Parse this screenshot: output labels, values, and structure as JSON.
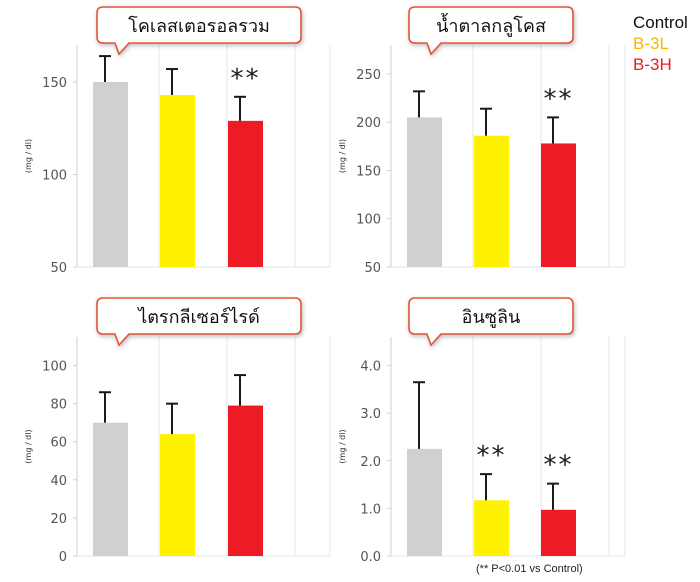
{
  "legend": [
    {
      "label": "Control",
      "color": "#111111"
    },
    {
      "label": "B-3L",
      "color": "#f5b800"
    },
    {
      "label": "B-3H",
      "color": "#e81c24"
    }
  ],
  "footnote": "(** P<0.01 vs Control)",
  "colors": {
    "control": "#cfd1d1",
    "b3l": "#fff200",
    "b3h": "#ed1c24",
    "callout_border": "#e2543a"
  },
  "chart_data": [
    {
      "type": "bar",
      "title": "โคเลสเตอรอลรวม",
      "ylabel": "(mg / dl)",
      "ylim": [
        50,
        170
      ],
      "yticks": [
        50,
        100,
        150
      ],
      "ytick_labels": [
        "50",
        "100",
        "150"
      ],
      "categories": [
        "Control",
        "B-3L",
        "B-3H"
      ],
      "values": [
        150,
        143,
        129
      ],
      "errors": [
        14,
        14,
        13
      ],
      "annotations": [
        "",
        "",
        "**"
      ]
    },
    {
      "type": "bar",
      "title": "น้ำตาลกลูโคส",
      "ylabel": "(mg / dl)",
      "ylim": [
        50,
        280
      ],
      "yticks": [
        50,
        100,
        150,
        200,
        250
      ],
      "ytick_labels": [
        "50",
        "100",
        "150",
        "200",
        "250"
      ],
      "categories": [
        "Control",
        "B-3L",
        "B-3H"
      ],
      "values": [
        205,
        186,
        178
      ],
      "errors": [
        27,
        28,
        27
      ],
      "annotations": [
        "",
        "",
        "**"
      ]
    },
    {
      "type": "bar",
      "title": "ไตรกลีเซอร์ไรด์",
      "ylabel": "(mg / dl)",
      "ylim": [
        0,
        115
      ],
      "yticks": [
        0,
        20,
        40,
        60,
        80,
        100
      ],
      "ytick_labels": [
        "0",
        "20",
        "40",
        "60",
        "80",
        "100"
      ],
      "categories": [
        "Control",
        "B-3L",
        "B-3H"
      ],
      "values": [
        70,
        64,
        79
      ],
      "errors": [
        16,
        16,
        16
      ],
      "annotations": [
        "",
        "",
        ""
      ]
    },
    {
      "type": "bar",
      "title": "อินซูลิน",
      "ylabel": "(mg / dl)",
      "ylim": [
        0,
        4.6
      ],
      "yticks": [
        0,
        1,
        2,
        3,
        4
      ],
      "ytick_labels": [
        "0.0",
        "1.0",
        "2.0",
        "3.0",
        "4.0"
      ],
      "categories": [
        "Control",
        "B-3L",
        "B-3H"
      ],
      "values": [
        2.25,
        1.17,
        0.97
      ],
      "errors": [
        1.4,
        0.55,
        0.55
      ],
      "annotations": [
        "",
        "**",
        "**"
      ]
    }
  ]
}
